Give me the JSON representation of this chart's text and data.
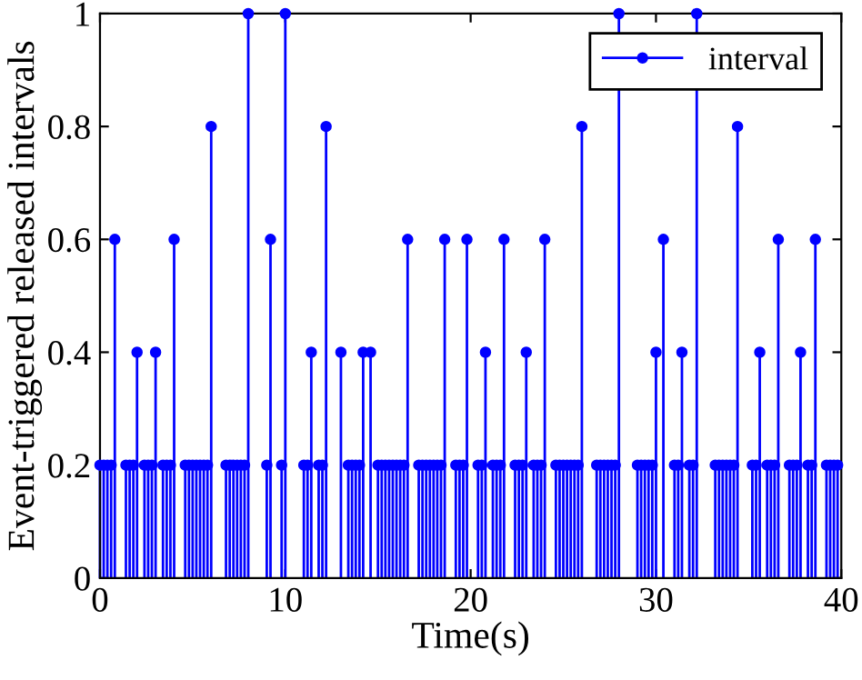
{
  "chart_data": {
    "type": "lollipop",
    "xlabel": "Time(s)",
    "ylabel": "Event-triggered released intervals",
    "xlim": [
      0,
      40
    ],
    "xticks": [
      0,
      10,
      20,
      30,
      40
    ],
    "ylim": [
      0,
      1
    ],
    "yticks": [
      0,
      0.2,
      0.4,
      0.6,
      0.8,
      1
    ],
    "grid": false,
    "legend": "top right",
    "marker": "circle",
    "series": [
      {
        "name": "interval",
        "color": "#0000ff",
        "x": [
          0,
          0.2,
          0.4,
          0.6,
          0.8,
          1.4,
          1.6,
          1.8,
          2.0,
          2.4,
          2.6,
          2.8,
          3.0,
          3.4,
          3.6,
          3.8,
          4.0,
          4.6,
          4.8,
          5.0,
          5.2,
          5.4,
          5.6,
          5.8,
          6.0,
          6.8,
          7.0,
          7.2,
          7.4,
          7.6,
          7.8,
          8.0,
          9.0,
          9.2,
          9.8,
          10.0,
          11.0,
          11.2,
          11.4,
          11.8,
          12.0,
          12.2,
          13.0,
          13.4,
          13.6,
          13.8,
          14.0,
          14.2,
          14.6,
          15.0,
          15.2,
          15.4,
          15.6,
          15.8,
          16.0,
          16.2,
          16.4,
          16.6,
          17.2,
          17.4,
          17.6,
          17.8,
          18.0,
          18.2,
          18.4,
          18.6,
          19.2,
          19.4,
          19.6,
          19.8,
          20.4,
          20.6,
          20.8,
          21.2,
          21.4,
          21.6,
          21.8,
          22.4,
          22.6,
          22.8,
          23.0,
          23.4,
          23.6,
          23.8,
          24.0,
          24.6,
          24.8,
          25.0,
          25.2,
          25.4,
          25.6,
          25.8,
          26.0,
          26.8,
          27.0,
          27.2,
          27.4,
          27.6,
          27.8,
          28.0,
          29.0,
          29.2,
          29.4,
          29.6,
          29.8,
          30.0,
          30.4,
          31.0,
          31.2,
          31.4,
          31.8,
          32.0,
          32.2,
          33.2,
          33.4,
          33.6,
          33.8,
          34.0,
          34.2,
          34.4,
          35.2,
          35.4,
          35.6,
          36.0,
          36.2,
          36.4,
          36.6,
          37.2,
          37.4,
          37.6,
          37.8,
          38.2,
          38.4,
          38.6,
          39.2,
          39.4,
          39.6,
          39.8
        ],
        "values": [
          0.2,
          0.2,
          0.2,
          0.2,
          0.6,
          0.2,
          0.2,
          0.2,
          0.4,
          0.2,
          0.2,
          0.2,
          0.4,
          0.2,
          0.2,
          0.2,
          0.6,
          0.2,
          0.2,
          0.2,
          0.2,
          0.2,
          0.2,
          0.2,
          0.8,
          0.2,
          0.2,
          0.2,
          0.2,
          0.2,
          0.2,
          1,
          0.2,
          0.6,
          0.2,
          1,
          0.2,
          0.2,
          0.4,
          0.2,
          0.2,
          0.8,
          0.4,
          0.2,
          0.2,
          0.2,
          0.2,
          0.4,
          0.4,
          0.2,
          0.2,
          0.2,
          0.2,
          0.2,
          0.2,
          0.2,
          0.2,
          0.6,
          0.2,
          0.2,
          0.2,
          0.2,
          0.2,
          0.2,
          0.2,
          0.6,
          0.2,
          0.2,
          0.2,
          0.6,
          0.2,
          0.2,
          0.4,
          0.2,
          0.2,
          0.2,
          0.6,
          0.2,
          0.2,
          0.2,
          0.4,
          0.2,
          0.2,
          0.2,
          0.6,
          0.2,
          0.2,
          0.2,
          0.2,
          0.2,
          0.2,
          0.2,
          0.8,
          0.2,
          0.2,
          0.2,
          0.2,
          0.2,
          0.2,
          1,
          0.2,
          0.2,
          0.2,
          0.2,
          0.2,
          0.4,
          0.6,
          0.2,
          0.2,
          0.4,
          0.2,
          0.2,
          1,
          0.2,
          0.2,
          0.2,
          0.2,
          0.2,
          0.2,
          0.8,
          0.2,
          0.2,
          0.4,
          0.2,
          0.2,
          0.2,
          0.6,
          0.2,
          0.2,
          0.2,
          0.4,
          0.2,
          0.2,
          0.6,
          0.2,
          0.2,
          0.2,
          0.2
        ]
      }
    ]
  }
}
